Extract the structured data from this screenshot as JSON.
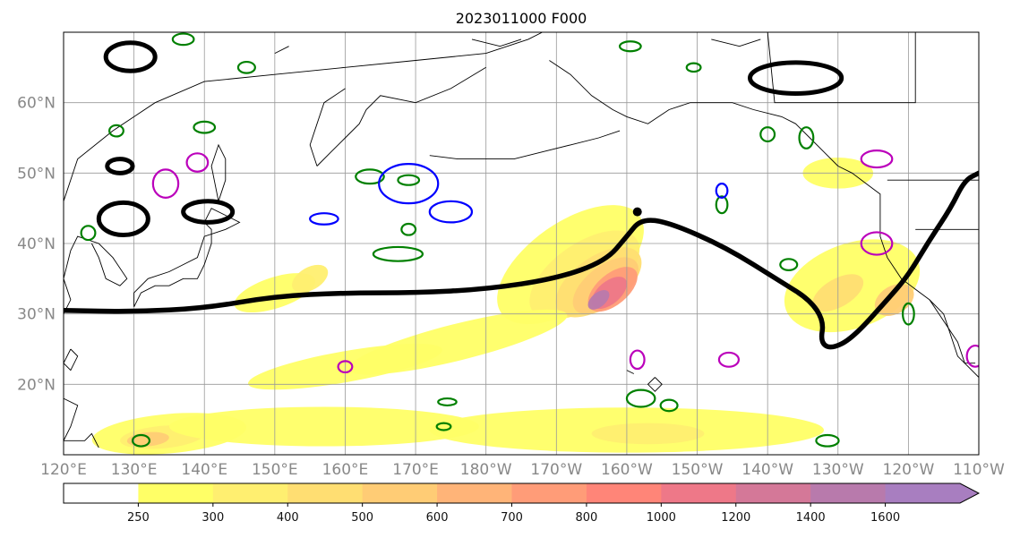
{
  "map": {
    "title": "2023011000 F000",
    "projection": "PlateCarree (central longitude 180)",
    "extent": {
      "lon_min": 120,
      "lon_max": 250,
      "lat_min": 10,
      "lat_max": 70
    },
    "gridlines": true,
    "lon_ticks": [
      {
        "lon": 120,
        "label": "120°E"
      },
      {
        "lon": 130,
        "label": "130°E"
      },
      {
        "lon": 140,
        "label": "140°E"
      },
      {
        "lon": 150,
        "label": "150°E"
      },
      {
        "lon": 160,
        "label": "160°E"
      },
      {
        "lon": 170,
        "label": "170°E"
      },
      {
        "lon": 180,
        "label": "180°W"
      },
      {
        "lon": 190,
        "label": "170°W"
      },
      {
        "lon": 200,
        "label": "160°W"
      },
      {
        "lon": 210,
        "label": "150°W"
      },
      {
        "lon": 220,
        "label": "140°W"
      },
      {
        "lon": 230,
        "label": "130°W"
      },
      {
        "lon": 240,
        "label": "120°W"
      },
      {
        "lon": 250,
        "label": "110°W"
      }
    ],
    "lat_ticks": [
      {
        "lat": 20,
        "label": "20°N"
      },
      {
        "lat": 30,
        "label": "30°N"
      },
      {
        "lat": 40,
        "label": "40°N"
      },
      {
        "lat": 50,
        "label": "50°N"
      },
      {
        "lat": 60,
        "label": "60°N"
      }
    ],
    "colorbar": {
      "levels": [
        250,
        300,
        400,
        500,
        600,
        700,
        800,
        1000,
        1200,
        1400,
        1600
      ],
      "labels": [
        "250",
        "300",
        "400",
        "500",
        "600",
        "700",
        "800",
        "1000",
        "1200",
        "1400",
        "1600"
      ],
      "colors": [
        "#ffffff",
        "#ffff66",
        "#ffef70",
        "#ffde72",
        "#ffcc75",
        "#ffb478",
        "#ff9c78",
        "#ff8578",
        "#ee7888",
        "#d47898",
        "#b87aac",
        "#a87ec0"
      ],
      "extend": "max"
    },
    "contour_colors": {
      "jet": "#000000",
      "green": "#008000",
      "blue": "#0000ff",
      "magenta": "#bb00bb"
    },
    "jet_line": [
      [
        120,
        30.5
      ],
      [
        130,
        30.3
      ],
      [
        140,
        30.8
      ],
      [
        150,
        32.5
      ],
      [
        160,
        33
      ],
      [
        170,
        33
      ],
      [
        180,
        33.5
      ],
      [
        190,
        35
      ],
      [
        197,
        37.5
      ],
      [
        200,
        41
      ],
      [
        202,
        43.5
      ],
      [
        206,
        43
      ],
      [
        214,
        39.5
      ],
      [
        222,
        34.5
      ],
      [
        226,
        32
      ],
      [
        228,
        29
      ],
      [
        227.5,
        26
      ],
      [
        229,
        25
      ],
      [
        232,
        26.5
      ],
      [
        237,
        32
      ],
      [
        240,
        35.5
      ],
      [
        243,
        40.5
      ],
      [
        246,
        45
      ],
      [
        248,
        49
      ],
      [
        250,
        50
      ]
    ],
    "ivt_blobs": [
      {
        "cx": 192,
        "cy": 37,
        "rx": 12,
        "ry": 6,
        "rot": 35,
        "level": 1
      },
      {
        "cx": 194,
        "cy": 35.5,
        "rx": 9,
        "ry": 4.5,
        "rot": 35,
        "level": 2
      },
      {
        "cx": 196,
        "cy": 34.5,
        "rx": 7,
        "ry": 3.6,
        "rot": 35,
        "level": 3
      },
      {
        "cx": 197,
        "cy": 34,
        "rx": 5.5,
        "ry": 2.8,
        "rot": 38,
        "level": 4
      },
      {
        "cx": 198,
        "cy": 33.5,
        "rx": 4.2,
        "ry": 2.2,
        "rot": 40,
        "level": 6
      },
      {
        "cx": 197.5,
        "cy": 33,
        "rx": 3,
        "ry": 1.6,
        "rot": 40,
        "level": 8
      },
      {
        "cx": 196,
        "cy": 32,
        "rx": 1.8,
        "ry": 1,
        "rot": 40,
        "level": 10
      },
      {
        "cx": 176,
        "cy": 26,
        "rx": 16,
        "ry": 2.6,
        "rot": 14,
        "level": 1
      },
      {
        "cx": 160,
        "cy": 22.5,
        "rx": 14,
        "ry": 2.2,
        "rot": 10,
        "level": 1
      },
      {
        "cx": 150,
        "cy": 33,
        "rx": 6,
        "ry": 2.2,
        "rot": 18,
        "level": 1
      },
      {
        "cx": 155,
        "cy": 35,
        "rx": 2.8,
        "ry": 1.6,
        "rot": 30,
        "level": 2
      },
      {
        "cx": 135,
        "cy": 13,
        "rx": 11,
        "ry": 2.8,
        "rot": 5,
        "level": 1
      },
      {
        "cx": 134,
        "cy": 12.5,
        "rx": 6,
        "ry": 1.6,
        "rot": 5,
        "level": 2
      },
      {
        "cx": 132,
        "cy": 12.2,
        "rx": 3,
        "ry": 1,
        "rot": 5,
        "level": 4
      },
      {
        "cx": 232,
        "cy": 34,
        "rx": 10,
        "ry": 6,
        "rot": 20,
        "level": 1
      },
      {
        "cx": 230,
        "cy": 33,
        "rx": 4,
        "ry": 2,
        "rot": 30,
        "level": 3
      },
      {
        "cx": 238,
        "cy": 32,
        "rx": 3,
        "ry": 2,
        "rot": 30,
        "level": 4
      },
      {
        "cx": 230,
        "cy": 50,
        "rx": 5,
        "ry": 2.2,
        "rot": 0,
        "level": 1
      },
      {
        "cx": 200,
        "cy": 13.5,
        "rx": 28,
        "ry": 3.2,
        "rot": 0,
        "level": 1
      },
      {
        "cx": 203,
        "cy": 13,
        "rx": 8,
        "ry": 1.5,
        "rot": 0,
        "level": 2
      },
      {
        "cx": 157,
        "cy": 14,
        "rx": 22,
        "ry": 2.8,
        "rot": 0,
        "level": 1
      }
    ],
    "green_contours": [
      [
        140,
        56.5,
        1.5,
        0.8
      ],
      [
        146,
        65,
        1.2,
        0.8
      ],
      [
        163.5,
        49.5,
        2,
        1
      ],
      [
        169,
        49,
        1.5,
        0.7
      ],
      [
        167.5,
        38.5,
        3.5,
        1
      ],
      [
        169,
        42,
        1,
        0.8
      ],
      [
        174.5,
        17.5,
        1.3,
        0.5
      ],
      [
        174,
        14,
        1,
        0.5
      ],
      [
        202,
        18,
        2,
        1.2
      ],
      [
        206,
        17,
        1.2,
        0.8
      ],
      [
        223,
        37,
        1.2,
        0.8
      ],
      [
        225.5,
        55,
        1,
        1.5
      ],
      [
        220,
        55.5,
        1,
        1
      ],
      [
        213.5,
        45.5,
        0.8,
        1.2
      ],
      [
        209.5,
        65,
        1,
        0.6
      ],
      [
        200.5,
        68,
        1.5,
        0.7
      ],
      [
        240,
        30,
        0.8,
        1.5
      ],
      [
        228.5,
        12,
        1.6,
        0.8
      ],
      [
        123.5,
        41.5,
        1,
        1
      ],
      [
        131,
        12,
        1.2,
        0.8
      ],
      [
        137,
        69,
        1.5,
        0.8
      ],
      [
        127.5,
        56,
        1,
        0.8
      ]
    ],
    "blue_contours": [
      [
        169,
        48.5,
        4.2,
        2.8
      ],
      [
        157,
        43.5,
        2,
        0.8
      ],
      [
        175,
        44.5,
        3,
        1.5
      ],
      [
        213.5,
        47.5,
        0.8,
        1
      ]
    ],
    "magenta_contours": [
      [
        139,
        51.5,
        1.5,
        1.3
      ],
      [
        134.5,
        48.5,
        1.8,
        2
      ],
      [
        201.5,
        23.5,
        1,
        1.3
      ],
      [
        214.5,
        23.5,
        1.4,
        1
      ],
      [
        235.5,
        52,
        2.2,
        1.2
      ],
      [
        235.5,
        40,
        2.2,
        1.6
      ],
      [
        249.5,
        24,
        1.2,
        1.5
      ],
      [
        160,
        22.5,
        1,
        0.8
      ]
    ]
  }
}
